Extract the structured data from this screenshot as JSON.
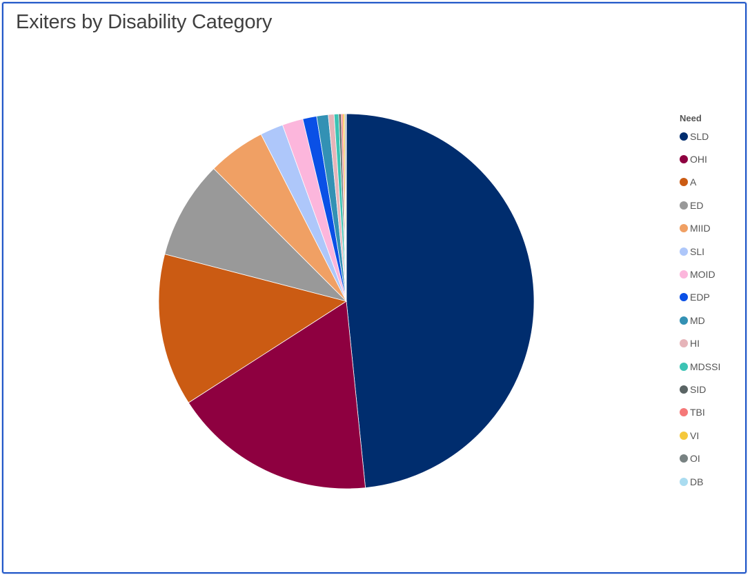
{
  "panel": {
    "title": "Exiters by Disability Category"
  },
  "chart_data": {
    "type": "pie",
    "title": "Exiters by Disability Category",
    "legend_title": "Need",
    "legend_position": "right",
    "start_angle_deg": 0,
    "direction": "clockwise",
    "slices": [
      {
        "label": "SLD",
        "value": 48.6,
        "color": "#002d6e"
      },
      {
        "label": "OHI",
        "value": 17.6,
        "color": "#8e0040"
      },
      {
        "label": "A",
        "value": 13.2,
        "color": "#cb5b13"
      },
      {
        "label": "ED",
        "value": 8.5,
        "color": "#999999"
      },
      {
        "label": "MIID",
        "value": 5.0,
        "color": "#f0a064"
      },
      {
        "label": "SLI",
        "value": 2.0,
        "color": "#aec7fa"
      },
      {
        "label": "MOID",
        "value": 1.8,
        "color": "#fcb6dc"
      },
      {
        "label": "EDP",
        "value": 1.2,
        "color": "#0a50e6"
      },
      {
        "label": "MD",
        "value": 1.0,
        "color": "#3391b4"
      },
      {
        "label": "HI",
        "value": 0.5,
        "color": "#e6b4b9"
      },
      {
        "label": "MDSSI",
        "value": 0.4,
        "color": "#3cc3b4"
      },
      {
        "label": "SID",
        "value": 0.2,
        "color": "#5a6464"
      },
      {
        "label": "TBI",
        "value": 0.15,
        "color": "#f57878"
      },
      {
        "label": "VI",
        "value": 0.15,
        "color": "#f5c83c"
      },
      {
        "label": "OI",
        "value": 0.1,
        "color": "#788282"
      },
      {
        "label": "DB",
        "value": 0.05,
        "color": "#aadcf0"
      }
    ]
  }
}
